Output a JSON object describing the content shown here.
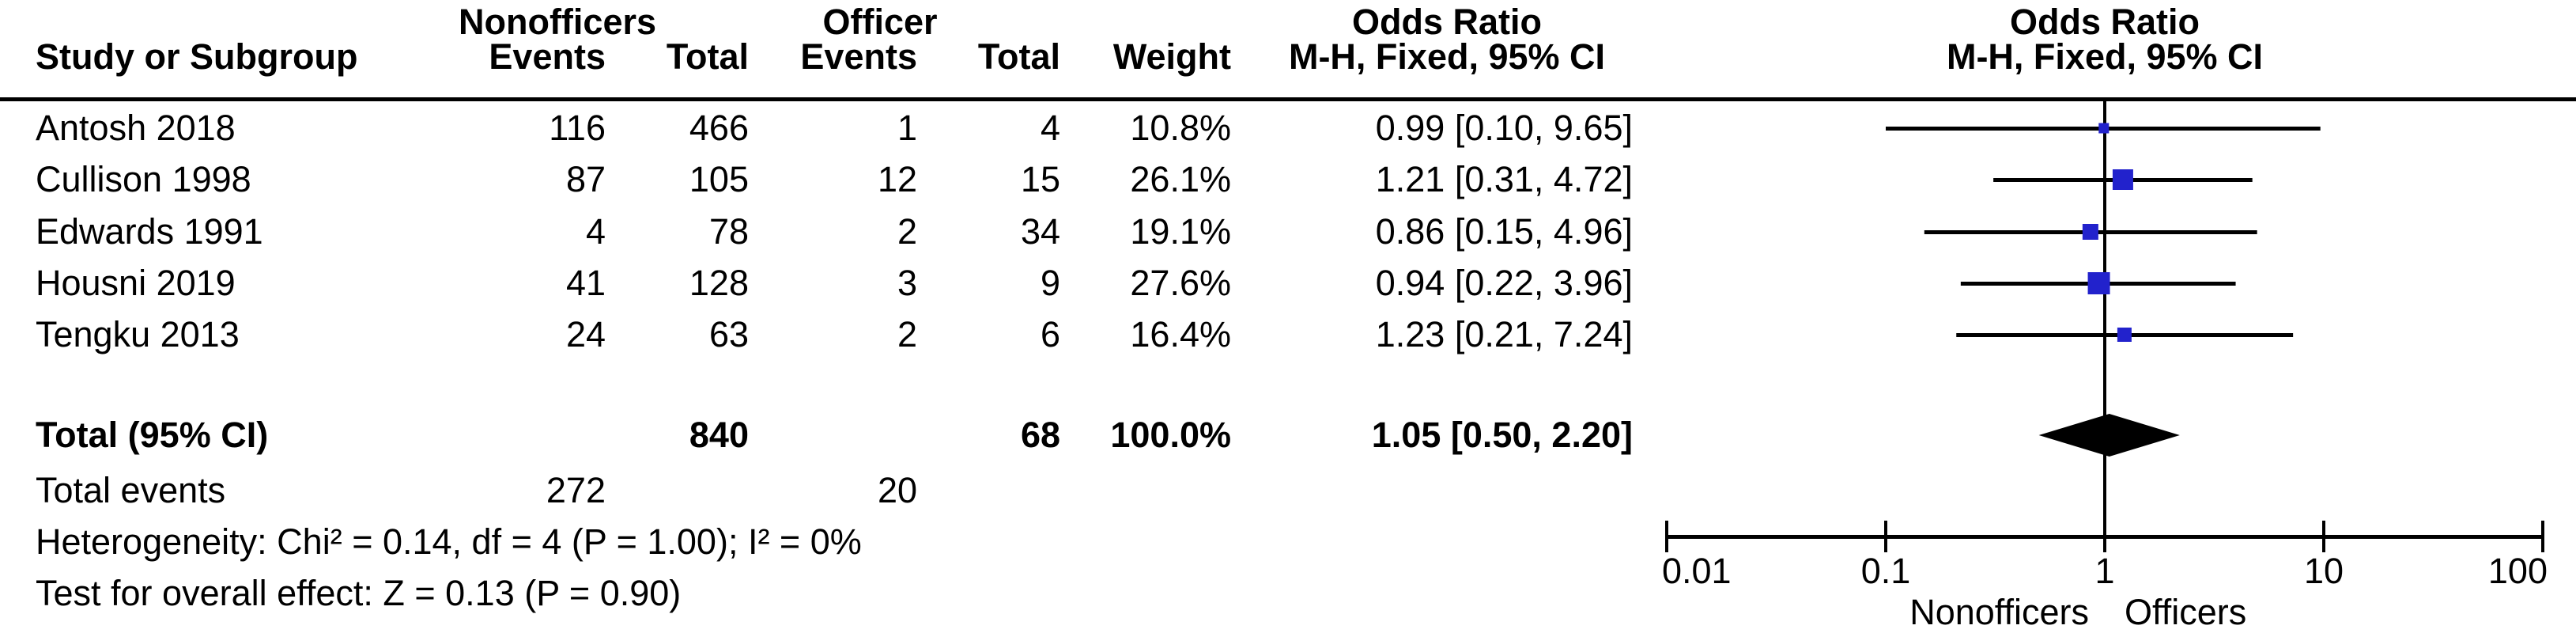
{
  "table": {
    "group_headers": {
      "nonofficers": "Nonofficers",
      "officer": "Officer",
      "odds_ratio": "Odds Ratio"
    },
    "column_headers": {
      "study": "Study or Subgroup",
      "events": "Events",
      "total": "Total",
      "weight": "Weight",
      "mh_fixed": "M-H, Fixed, 95% CI"
    },
    "rows": [
      {
        "study": "Antosh 2018",
        "ne": "116",
        "nt": "466",
        "oe": "1",
        "ot": "4",
        "wt": "10.8%",
        "or": "0.99 [0.10, 9.65]"
      },
      {
        "study": "Cullison 1998",
        "ne": "87",
        "nt": "105",
        "oe": "12",
        "ot": "15",
        "wt": "26.1%",
        "or": "1.21 [0.31, 4.72]"
      },
      {
        "study": "Edwards 1991",
        "ne": "4",
        "nt": "78",
        "oe": "2",
        "ot": "34",
        "wt": "19.1%",
        "or": "0.86 [0.15, 4.96]"
      },
      {
        "study": "Housni 2019",
        "ne": "41",
        "nt": "128",
        "oe": "3",
        "ot": "9",
        "wt": "27.6%",
        "or": "0.94 [0.22, 3.96]"
      },
      {
        "study": "Tengku 2013",
        "ne": "24",
        "nt": "63",
        "oe": "2",
        "ot": "6",
        "wt": "16.4%",
        "or": "1.23 [0.21, 7.24]"
      }
    ],
    "total_row": {
      "label": "Total (95% CI)",
      "nt": "840",
      "ot": "68",
      "wt": "100.0%",
      "or": "1.05 [0.50, 2.20]"
    },
    "total_events": {
      "label": "Total events",
      "ne": "272",
      "oe": "20"
    },
    "heterogeneity": "Heterogeneity: Chi² = 0.14, df = 4 (P = 1.00); I² = 0%",
    "overall_effect": "Test for overall effect: Z = 0.13 (P = 0.90)"
  },
  "plot": {
    "axis_tick_labels": [
      "0.01",
      "0.1",
      "1",
      "10",
      "100"
    ],
    "axis_label_left": "Nonofficers",
    "axis_label_right": "Officers"
  },
  "chart_data": {
    "type": "forest_plot",
    "effect_measure": "Odds Ratio, M-H, Fixed, 95% CI",
    "x_scale": "log10",
    "x_range": [
      0.01,
      100
    ],
    "x_ticks": [
      0.01,
      0.1,
      1,
      10,
      100
    ],
    "null_line": 1,
    "studies": [
      {
        "label": "Antosh 2018",
        "events_nonofficers": 116,
        "total_nonofficers": 466,
        "events_officer": 1,
        "total_officer": 4,
        "weight_pct": 10.8,
        "or": 0.99,
        "ci_low": 0.1,
        "ci_high": 9.65
      },
      {
        "label": "Cullison 1998",
        "events_nonofficers": 87,
        "total_nonofficers": 105,
        "events_officer": 12,
        "total_officer": 15,
        "weight_pct": 26.1,
        "or": 1.21,
        "ci_low": 0.31,
        "ci_high": 4.72
      },
      {
        "label": "Edwards 1991",
        "events_nonofficers": 4,
        "total_nonofficers": 78,
        "events_officer": 2,
        "total_officer": 34,
        "weight_pct": 19.1,
        "or": 0.86,
        "ci_low": 0.15,
        "ci_high": 4.96
      },
      {
        "label": "Housni 2019",
        "events_nonofficers": 41,
        "total_nonofficers": 128,
        "events_officer": 3,
        "total_officer": 9,
        "weight_pct": 27.6,
        "or": 0.94,
        "ci_low": 0.22,
        "ci_high": 3.96
      },
      {
        "label": "Tengku 2013",
        "events_nonofficers": 24,
        "total_nonofficers": 63,
        "events_officer": 2,
        "total_officer": 6,
        "weight_pct": 16.4,
        "or": 1.23,
        "ci_low": 0.21,
        "ci_high": 7.24
      }
    ],
    "total": {
      "or": 1.05,
      "ci_low": 0.5,
      "ci_high": 2.2,
      "total_nonofficers": 840,
      "total_officer": 68,
      "weight_pct": 100.0
    },
    "heterogeneity": {
      "chi2": 0.14,
      "df": 4,
      "p": 1.0,
      "i2_pct": 0
    },
    "overall_effect": {
      "z": 0.13,
      "p": 0.9
    },
    "marker_color": "#2222cc",
    "line_color": "#000000"
  }
}
